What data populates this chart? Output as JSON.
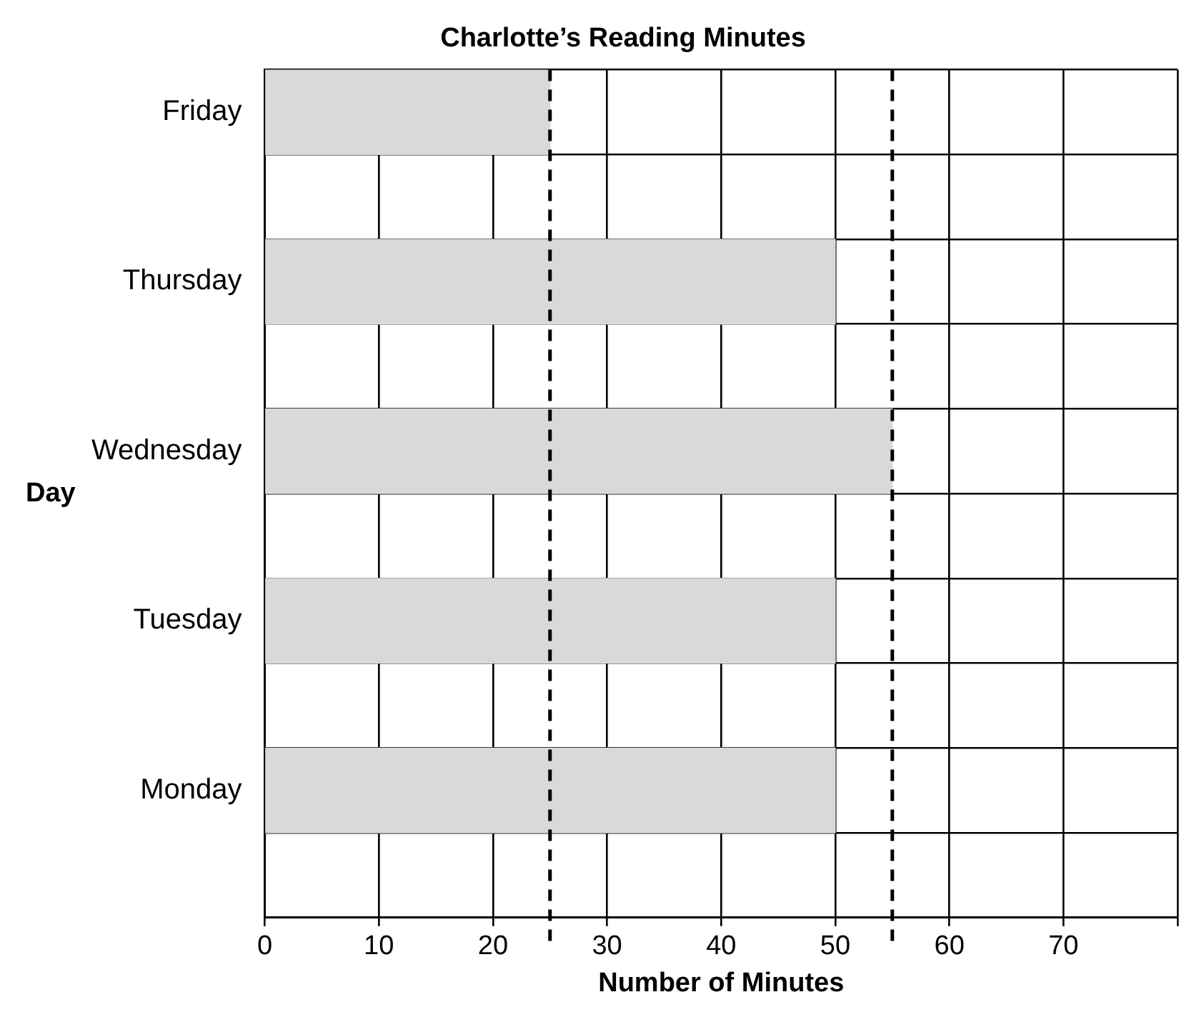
{
  "chart_data": {
    "type": "bar",
    "orientation": "horizontal",
    "title": "Charlotte’s Reading Minutes",
    "xlabel": "Number of Minutes",
    "ylabel": "Day",
    "categories": [
      "Friday",
      null,
      "Thursday",
      null,
      "Wednesday",
      null,
      "Tuesday",
      null,
      "Monday",
      null
    ],
    "values": [
      25,
      null,
      50,
      null,
      55,
      null,
      50,
      null,
      50,
      null
    ],
    "color": "#d9d9d9",
    "xlim": [
      0,
      80
    ],
    "xticks": [
      0,
      10,
      20,
      30,
      40,
      50,
      60,
      70,
      {
        "value": 80,
        "label": null
      }
    ],
    "grid": true,
    "legend": false,
    "ref_lines": [
      {
        "axis": "x",
        "value": 25,
        "color": "#000000",
        "line_style": "dashed"
      },
      {
        "axis": "x",
        "value": 55,
        "color": "#000000",
        "line_style": "dashed"
      }
    ]
  }
}
